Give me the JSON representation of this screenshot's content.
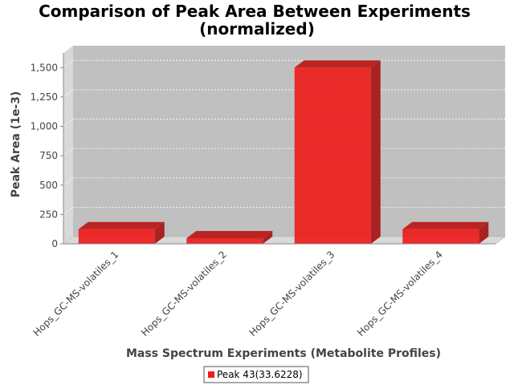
{
  "chart_data": {
    "type": "bar",
    "title_line1": "Comparison of Peak Area Between Experiments",
    "title_line2": "(normalized)",
    "xlabel": "Mass Spectrum Experiments (Metabolite Profiles)",
    "ylabel": "Peak Area (1e-3)",
    "categories": [
      "Hops_GC-MS-volatiles_1",
      "Hops_GC-MS-volatiles_2",
      "Hops_GC-MS-volatiles_3",
      "Hops_GC-MS-volatiles_4"
    ],
    "series": [
      {
        "name": "Peak 43(33.6228)",
        "values": [
          125,
          48,
          1500,
          125
        ],
        "color": "#ee1c1c"
      }
    ],
    "ylim": [
      0,
      1625
    ],
    "yticks": [
      0,
      250,
      500,
      750,
      1000,
      1250,
      1500
    ],
    "ytick_labels": [
      "0",
      "250",
      "500",
      "750",
      "1,000",
      "1,250",
      "1,500"
    ],
    "grid": true,
    "legend_position": "bottom",
    "plot_background": "#c0c0c0",
    "style": "3d"
  }
}
